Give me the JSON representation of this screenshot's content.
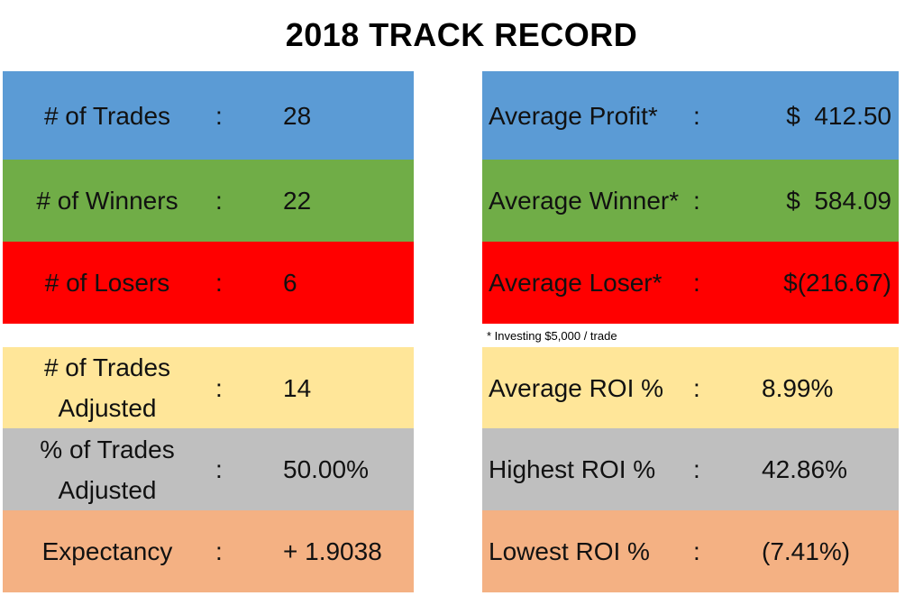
{
  "title": "2018 TRACK RECORD",
  "colors": {
    "blue": "#5b9bd5",
    "green": "#70ad47",
    "red": "#ff0000",
    "yellow": "#ffe699",
    "gray": "#bfbfbf",
    "orange": "#f4b183"
  },
  "colon": ":",
  "left_rows": [
    {
      "label": "# of Trades",
      "value": "28",
      "color": "#5b9bd5"
    },
    {
      "label": "# of Winners",
      "value": "22",
      "color": "#70ad47"
    },
    {
      "label": "# of Losers",
      "value": "6",
      "color": "#ff0000"
    },
    {
      "label": "# of Trades Adjusted",
      "value": "14",
      "color": "#ffe699"
    },
    {
      "label": "% of Trades Adjusted",
      "value": "50.00%",
      "color": "#bfbfbf"
    },
    {
      "label": "Expectancy",
      "value": "+ 1.9038",
      "color": "#f4b183"
    }
  ],
  "right_rows": [
    {
      "label": "Average Profit*",
      "value": "$  412.50",
      "color": "#5b9bd5"
    },
    {
      "label": "Average Winner*",
      "value": "$  584.09",
      "color": "#70ad47"
    },
    {
      "label": "Average Loser*",
      "value": "$(216.67)",
      "color": "#ff0000"
    },
    {
      "label": "Average ROI %",
      "value": "8.99%",
      "color": "#ffe699"
    },
    {
      "label": "Highest ROI %",
      "value": "42.86%",
      "color": "#bfbfbf"
    },
    {
      "label": "Lowest ROI %",
      "value": "(7.41%)",
      "color": "#f4b183"
    }
  ],
  "footnote": "* Investing $5,000 / trade"
}
